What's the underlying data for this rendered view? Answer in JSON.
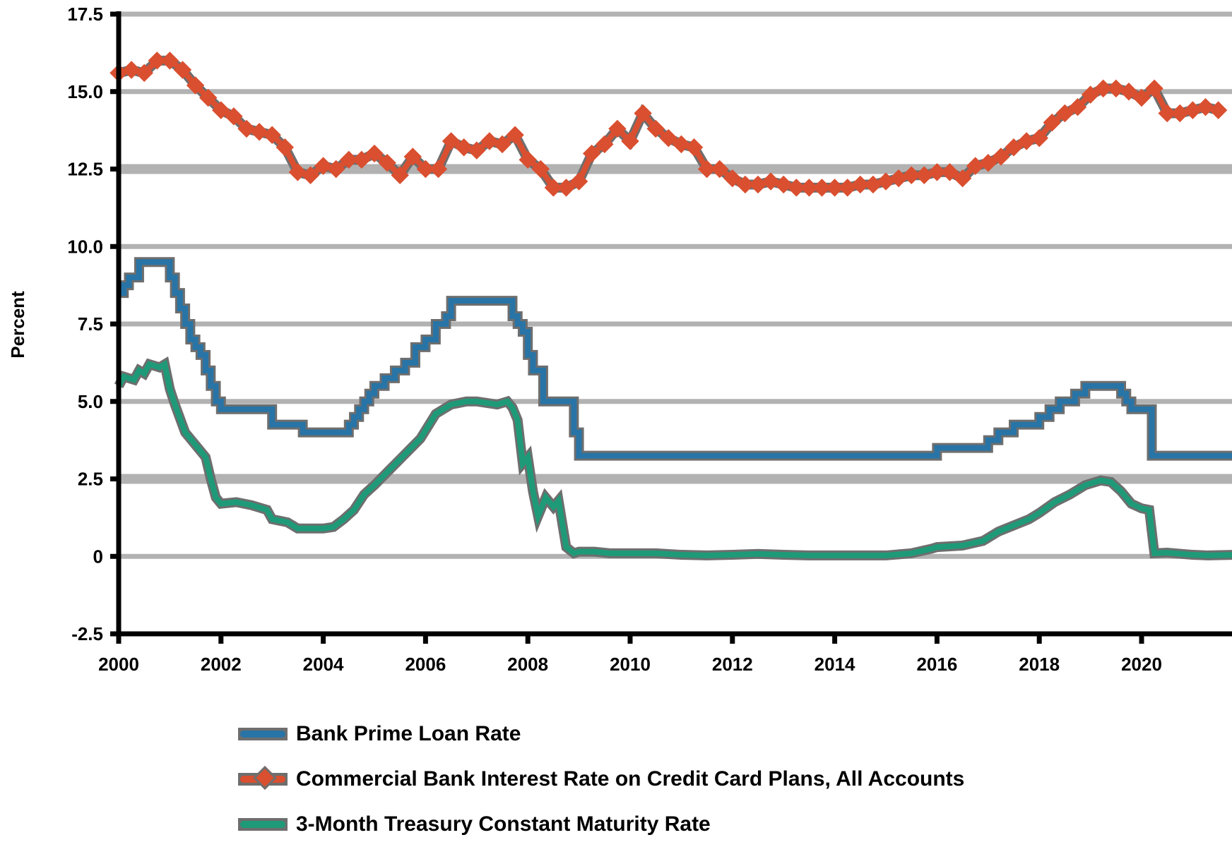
{
  "chart_data": {
    "type": "line",
    "title": "",
    "xlabel": "",
    "ylabel": "Percent",
    "ylim": [
      -2.5,
      17.5
    ],
    "xlim": [
      2000,
      2021.8
    ],
    "y_ticks": [
      "17.5",
      "15.0",
      "12.5",
      "10.0",
      "7.5",
      "5.0",
      "2.5",
      "0",
      "-2.5"
    ],
    "y_tick_values": [
      17.5,
      15.0,
      12.5,
      10.0,
      7.5,
      5.0,
      2.5,
      0,
      -2.5
    ],
    "x_ticks": [
      "2000",
      "2002",
      "2004",
      "2006",
      "2008",
      "2010",
      "2012",
      "2014",
      "2016",
      "2018",
      "2020"
    ],
    "x_tick_values": [
      2000,
      2002,
      2004,
      2006,
      2008,
      2010,
      2012,
      2014,
      2016,
      2018,
      2020
    ],
    "grid": "horizontal",
    "legend_position": "bottom",
    "series": [
      {
        "name": "Bank Prime Loan Rate",
        "color": "#2874A6",
        "marker": "none",
        "step": true,
        "x": [
          2000.0,
          2000.1,
          2000.2,
          2000.3,
          2000.4,
          2000.9,
          2001.0,
          2001.1,
          2001.2,
          2001.3,
          2001.4,
          2001.5,
          2001.6,
          2001.7,
          2001.8,
          2001.9,
          2002.0,
          2002.9,
          2003.0,
          2003.5,
          2003.6,
          2004.4,
          2004.5,
          2004.6,
          2004.7,
          2004.8,
          2004.9,
          2005.0,
          2005.2,
          2005.4,
          2005.6,
          2005.8,
          2006.0,
          2006.2,
          2006.4,
          2006.5,
          2007.6,
          2007.7,
          2007.8,
          2007.9,
          2008.0,
          2008.1,
          2008.3,
          2008.8,
          2008.9,
          2009.0,
          2015.9,
          2016.0,
          2016.9,
          2017.0,
          2017.2,
          2017.4,
          2017.5,
          2017.9,
          2018.0,
          2018.2,
          2018.4,
          2018.7,
          2018.9,
          2019.5,
          2019.6,
          2019.7,
          2019.8,
          2020.1,
          2020.2,
          2021.8
        ],
        "y": [
          8.5,
          8.75,
          9.0,
          9.0,
          9.5,
          9.5,
          9.0,
          8.5,
          8.0,
          7.5,
          7.0,
          6.75,
          6.5,
          6.0,
          5.5,
          5.0,
          4.75,
          4.75,
          4.25,
          4.25,
          4.0,
          4.0,
          4.25,
          4.5,
          4.75,
          5.0,
          5.25,
          5.5,
          5.75,
          6.0,
          6.25,
          6.75,
          7.0,
          7.5,
          7.75,
          8.25,
          8.25,
          7.75,
          7.5,
          7.25,
          6.5,
          6.0,
          5.0,
          5.0,
          4.0,
          3.25,
          3.25,
          3.5,
          3.5,
          3.75,
          4.0,
          4.0,
          4.25,
          4.25,
          4.5,
          4.75,
          5.0,
          5.25,
          5.5,
          5.5,
          5.25,
          5.0,
          4.75,
          4.75,
          3.25,
          3.25
        ]
      },
      {
        "name": "Commercial Bank Interest Rate on Credit Card Plans, All Accounts",
        "color": "#D94F30",
        "marker": "diamond",
        "step": false,
        "x": [
          2000.0,
          2000.25,
          2000.5,
          2000.75,
          2001.0,
          2001.25,
          2001.5,
          2001.75,
          2002.0,
          2002.25,
          2002.5,
          2002.75,
          2003.0,
          2003.25,
          2003.5,
          2003.75,
          2004.0,
          2004.25,
          2004.5,
          2004.75,
          2005.0,
          2005.25,
          2005.5,
          2005.75,
          2006.0,
          2006.25,
          2006.5,
          2006.75,
          2007.0,
          2007.25,
          2007.5,
          2007.75,
          2008.0,
          2008.25,
          2008.5,
          2008.75,
          2009.0,
          2009.25,
          2009.5,
          2009.75,
          2010.0,
          2010.25,
          2010.5,
          2010.75,
          2011.0,
          2011.25,
          2011.5,
          2011.75,
          2012.0,
          2012.25,
          2012.5,
          2012.75,
          2013.0,
          2013.25,
          2013.5,
          2013.75,
          2014.0,
          2014.25,
          2014.5,
          2014.75,
          2015.0,
          2015.25,
          2015.5,
          2015.75,
          2016.0,
          2016.25,
          2016.5,
          2016.75,
          2017.0,
          2017.25,
          2017.5,
          2017.75,
          2018.0,
          2018.25,
          2018.5,
          2018.75,
          2019.0,
          2019.25,
          2019.5,
          2019.75,
          2020.0,
          2020.25,
          2020.5,
          2020.75,
          2021.0,
          2021.25,
          2021.5
        ],
        "y": [
          15.6,
          15.7,
          15.6,
          16.0,
          16.0,
          15.7,
          15.2,
          14.8,
          14.4,
          14.2,
          13.8,
          13.7,
          13.6,
          13.2,
          12.4,
          12.3,
          12.6,
          12.5,
          12.8,
          12.8,
          13.0,
          12.7,
          12.3,
          12.9,
          12.5,
          12.5,
          13.4,
          13.2,
          13.1,
          13.4,
          13.3,
          13.6,
          12.8,
          12.5,
          11.9,
          11.9,
          12.1,
          13.0,
          13.3,
          13.8,
          13.4,
          14.3,
          13.8,
          13.5,
          13.3,
          13.2,
          12.5,
          12.5,
          12.2,
          12.0,
          12.0,
          12.1,
          12.0,
          11.9,
          11.9,
          11.9,
          11.9,
          11.9,
          12.0,
          12.0,
          12.1,
          12.2,
          12.3,
          12.3,
          12.4,
          12.4,
          12.2,
          12.6,
          12.7,
          12.9,
          13.2,
          13.4,
          13.5,
          14.0,
          14.3,
          14.5,
          14.9,
          15.1,
          15.1,
          15.0,
          14.8,
          15.1,
          14.3,
          14.3,
          14.4,
          14.5,
          14.4
        ]
      },
      {
        "name": "3-Month Treasury Constant Maturity Rate",
        "color": "#1E9A78",
        "marker": "none",
        "step": false,
        "x": [
          2000.0,
          2000.1,
          2000.3,
          2000.4,
          2000.5,
          2000.6,
          2000.8,
          2000.9,
          2001.0,
          2001.1,
          2001.3,
          2001.5,
          2001.7,
          2001.8,
          2001.9,
          2002.0,
          2002.3,
          2002.6,
          2002.9,
          2003.0,
          2003.3,
          2003.5,
          2003.8,
          2004.0,
          2004.2,
          2004.4,
          2004.6,
          2004.8,
          2005.0,
          2005.3,
          2005.6,
          2005.9,
          2006.2,
          2006.5,
          2006.8,
          2007.0,
          2007.2,
          2007.4,
          2007.6,
          2007.7,
          2007.8,
          2007.9,
          2008.0,
          2008.1,
          2008.2,
          2008.35,
          2008.5,
          2008.6,
          2008.75,
          2008.9,
          2009.0,
          2009.3,
          2009.6,
          2010.0,
          2010.5,
          2011.0,
          2011.5,
          2012.0,
          2012.5,
          2013.0,
          2013.5,
          2014.0,
          2014.5,
          2015.0,
          2015.5,
          2015.9,
          2016.0,
          2016.5,
          2016.9,
          2017.2,
          2017.5,
          2017.8,
          2018.0,
          2018.3,
          2018.6,
          2018.9,
          2019.2,
          2019.4,
          2019.6,
          2019.8,
          2020.0,
          2020.15,
          2020.25,
          2020.5,
          2021.0,
          2021.3,
          2021.8
        ],
        "y": [
          5.5,
          5.8,
          5.7,
          6.0,
          5.9,
          6.2,
          6.1,
          6.2,
          5.4,
          4.9,
          4.0,
          3.6,
          3.2,
          2.5,
          1.9,
          1.7,
          1.75,
          1.65,
          1.5,
          1.2,
          1.1,
          0.9,
          0.9,
          0.9,
          0.95,
          1.2,
          1.5,
          2.0,
          2.3,
          2.8,
          3.3,
          3.8,
          4.6,
          4.9,
          5.0,
          5.0,
          4.95,
          4.9,
          5.0,
          4.8,
          4.4,
          3.0,
          3.2,
          2.1,
          1.3,
          1.9,
          1.6,
          1.8,
          0.3,
          0.1,
          0.15,
          0.15,
          0.1,
          0.1,
          0.1,
          0.05,
          0.03,
          0.05,
          0.08,
          0.05,
          0.03,
          0.03,
          0.03,
          0.03,
          0.1,
          0.25,
          0.3,
          0.35,
          0.5,
          0.8,
          1.0,
          1.2,
          1.4,
          1.75,
          2.0,
          2.3,
          2.45,
          2.4,
          2.1,
          1.7,
          1.55,
          1.5,
          0.1,
          0.12,
          0.05,
          0.03,
          0.05
        ]
      }
    ]
  },
  "legend": {
    "items": [
      {
        "label": "Bank Prime Loan Rate",
        "color": "#2874A6",
        "marker": false
      },
      {
        "label": "Commercial Bank Interest Rate on Credit Card Plans, All Accounts",
        "color": "#D94F30",
        "marker": true
      },
      {
        "label": "3-Month Treasury Constant Maturity Rate",
        "color": "#1E9A78",
        "marker": false
      }
    ]
  },
  "styles": {
    "grid_color": "#B2B2B2",
    "axis_color": "#000000",
    "halo_color": "#6E6E6E"
  }
}
